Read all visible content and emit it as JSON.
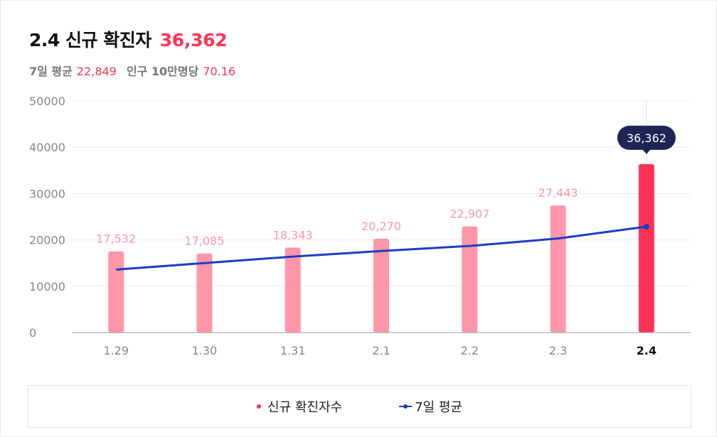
{
  "header": {
    "title": "2.4 신규 확진자",
    "value": "36,362",
    "avg_label": "7일 평균",
    "avg_value": "22,849",
    "per100k_label": "인구 10만명당",
    "per100k_value": "70.16"
  },
  "colors": {
    "accent": "#ff3355",
    "bar": "#ff97a8",
    "bar_highlight": "#ff3355",
    "label": "#f49aa6",
    "line": "#1f3bc4",
    "tooltip_bg": "#1d2555",
    "grid": "#ececec",
    "axis": "#888888"
  },
  "legend": {
    "items": [
      {
        "label": "신규 확진자수",
        "icon": "red-dot"
      },
      {
        "label": "7일 평균",
        "icon": "blue-line-marker"
      }
    ]
  },
  "chart_data": {
    "type": "bar",
    "categories": [
      "1.29",
      "1.30",
      "1.31",
      "2.1",
      "2.2",
      "2.3",
      "2.4"
    ],
    "series": [
      {
        "name": "신규 확진자수",
        "type": "bar",
        "values": [
          17532,
          17085,
          18343,
          20270,
          22907,
          27443,
          36362
        ]
      },
      {
        "name": "7일 평균",
        "type": "line",
        "values": [
          13600,
          15000,
          16400,
          17600,
          18700,
          20300,
          22849
        ]
      }
    ],
    "data_labels": [
      "17,532",
      "17,085",
      "18,343",
      "20,270",
      "22,907",
      "27,443",
      "36,362"
    ],
    "y_ticks": [
      "0",
      "10000",
      "20000",
      "30000",
      "40000",
      "50000"
    ],
    "ylim": [
      0,
      50000
    ],
    "grid": true,
    "highlight_index": 6,
    "tooltip": "36,362",
    "legend_position": "bottom"
  }
}
